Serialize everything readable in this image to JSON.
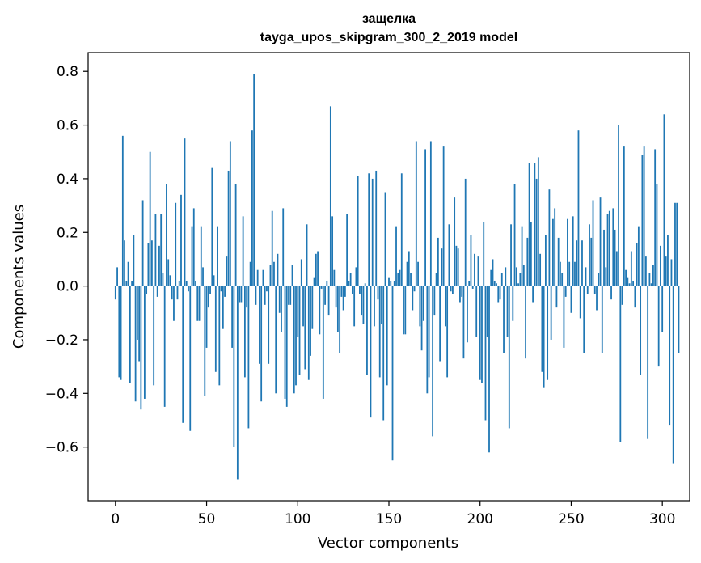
{
  "chart_data": {
    "type": "bar",
    "title_line1": "защелка",
    "title_line2": "tayga_upos_skipgram_300_2_2019 model",
    "xlabel": "Vector components",
    "ylabel": "Components values",
    "xlim": [
      -15,
      315
    ],
    "ylim": [
      -0.8,
      0.87
    ],
    "xticks": [
      0,
      50,
      100,
      150,
      200,
      250,
      300
    ],
    "xtick_labels": [
      "0",
      "50",
      "100",
      "150",
      "200",
      "250",
      "300"
    ],
    "yticks": [
      -0.6,
      -0.4,
      -0.2,
      0.0,
      0.2,
      0.4,
      0.6,
      0.8
    ],
    "ytick_labels": [
      "−0.6",
      "−0.4",
      "−0.2",
      "0.0",
      "0.2",
      "0.4",
      "0.6",
      "0.8"
    ],
    "bar_color": "#1f77b4",
    "values": [
      -0.05,
      0.07,
      -0.34,
      -0.35,
      0.56,
      0.17,
      0.02,
      0.09,
      -0.36,
      0.02,
      0.19,
      -0.43,
      -0.2,
      -0.28,
      -0.46,
      0.32,
      -0.42,
      -0.03,
      0.16,
      0.5,
      0.17,
      -0.37,
      0.27,
      -0.04,
      0.15,
      0.27,
      0.05,
      -0.45,
      0.38,
      0.1,
      0.04,
      -0.05,
      -0.13,
      0.31,
      -0.05,
      0.02,
      0.34,
      -0.51,
      0.55,
      0.02,
      -0.02,
      -0.54,
      0.22,
      0.29,
      0.02,
      -0.13,
      -0.13,
      0.22,
      0.07,
      -0.41,
      -0.23,
      -0.08,
      -0.03,
      0.44,
      0.04,
      -0.32,
      0.22,
      -0.37,
      -0.02,
      -0.16,
      -0.04,
      0.11,
      0.43,
      0.54,
      -0.23,
      -0.6,
      0.38,
      -0.72,
      -0.06,
      -0.06,
      0.26,
      -0.34,
      -0.08,
      -0.53,
      0.09,
      0.58,
      0.79,
      -0.07,
      0.06,
      -0.29,
      -0.43,
      0.06,
      -0.07,
      -0.02,
      -0.29,
      0.08,
      0.28,
      0.09,
      -0.4,
      0.12,
      -0.1,
      -0.17,
      0.29,
      -0.42,
      -0.45,
      -0.07,
      -0.07,
      0.08,
      -0.4,
      -0.37,
      -0.19,
      -0.33,
      0.1,
      -0.15,
      -0.31,
      0.23,
      -0.35,
      -0.26,
      -0.16,
      0.03,
      0.12,
      0.13,
      -0.18,
      -0.01,
      -0.42,
      -0.07,
      0.02,
      -0.11,
      0.67,
      0.26,
      0.06,
      -0.08,
      -0.17,
      -0.25,
      -0.04,
      -0.09,
      -0.04,
      0.27,
      0.02,
      0.05,
      -0.03,
      -0.15,
      0.07,
      0.41,
      -0.03,
      -0.11,
      -0.14,
      0.01,
      -0.33,
      0.42,
      -0.49,
      0.4,
      -0.15,
      0.43,
      -0.05,
      -0.34,
      -0.14,
      -0.5,
      0.35,
      -0.37,
      0.03,
      0.02,
      -0.65,
      0.02,
      0.22,
      0.05,
      0.06,
      0.42,
      -0.18,
      -0.18,
      0.09,
      0.13,
      0.05,
      -0.09,
      -0.02,
      0.54,
      0.09,
      -0.15,
      -0.24,
      -0.13,
      0.51,
      -0.4,
      -0.34,
      0.54,
      -0.56,
      -0.11,
      0.05,
      0.18,
      -0.28,
      0.14,
      0.52,
      -0.15,
      -0.34,
      0.23,
      -0.02,
      -0.03,
      0.33,
      0.15,
      0.14,
      -0.06,
      -0.04,
      -0.27,
      0.4,
      -0.21,
      0.02,
      0.19,
      -0.01,
      0.12,
      -0.19,
      0.11,
      -0.35,
      -0.36,
      0.24,
      -0.5,
      -0.19,
      -0.62,
      0.06,
      0.1,
      0.02,
      0.01,
      -0.06,
      -0.05,
      0.05,
      -0.25,
      0.07,
      -0.19,
      -0.53,
      0.23,
      -0.13,
      0.38,
      0.07,
      0.01,
      0.05,
      0.22,
      0.08,
      -0.27,
      0.18,
      0.46,
      0.24,
      -0.06,
      0.46,
      0.4,
      0.48,
      0.12,
      -0.32,
      -0.38,
      0.19,
      -0.35,
      0.36,
      -0.2,
      0.25,
      0.29,
      -0.08,
      0.18,
      0.09,
      0.05,
      -0.23,
      -0.04,
      0.25,
      0.09,
      -0.1,
      0.26,
      0.09,
      0.17,
      0.58,
      -0.12,
      0.17,
      -0.25,
      0.07,
      -0.03,
      0.23,
      0.18,
      0.32,
      -0.03,
      -0.09,
      0.05,
      0.33,
      -0.25,
      0.21,
      0.07,
      0.27,
      0.28,
      -0.05,
      0.29,
      0.21,
      0.13,
      0.6,
      -0.58,
      -0.07,
      0.52,
      0.06,
      0.03,
      0.01,
      0.13,
      0.02,
      -0.08,
      0.16,
      0.22,
      -0.33,
      0.49,
      0.52,
      0.11,
      -0.57,
      0.05,
      0.01,
      0.08,
      0.51,
      0.38,
      -0.3,
      0.15,
      -0.17,
      0.64,
      0.11,
      0.19,
      -0.52,
      0.1,
      -0.66,
      0.31,
      0.31,
      -0.25
    ]
  }
}
